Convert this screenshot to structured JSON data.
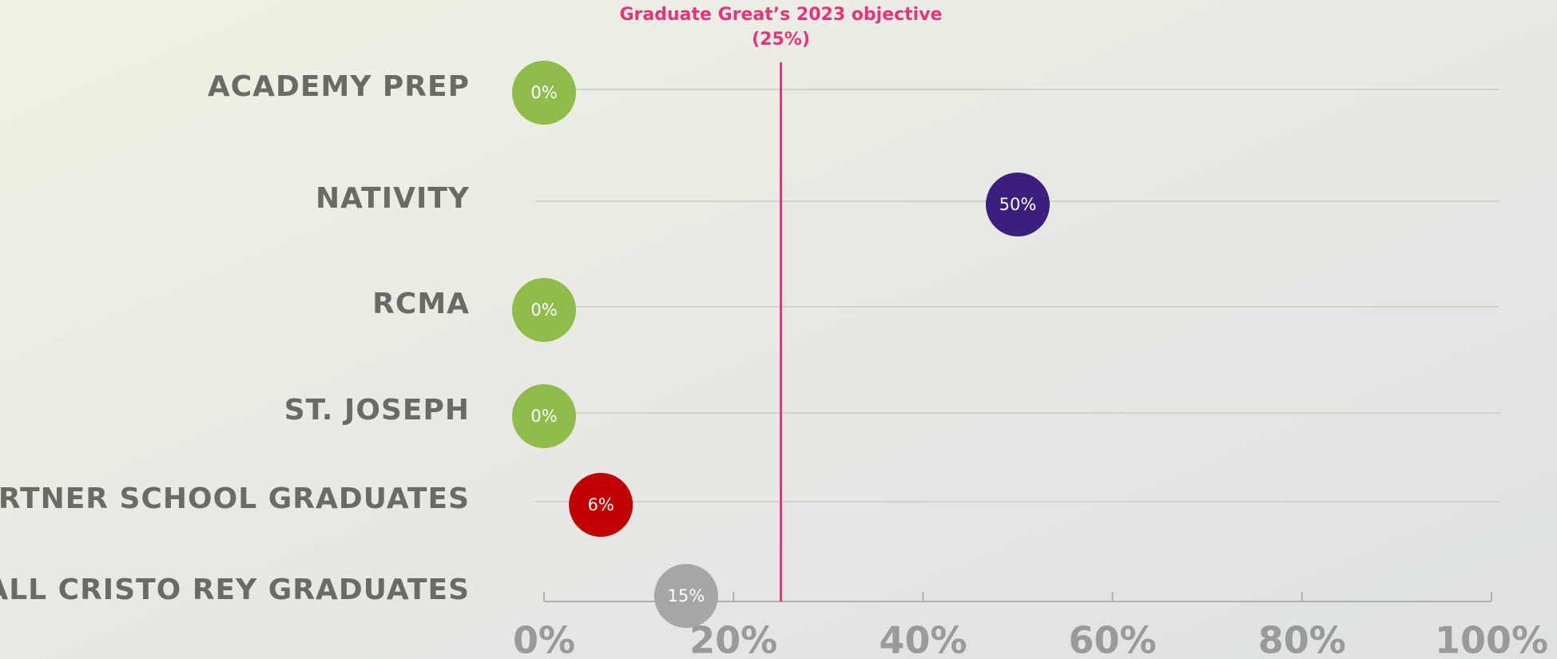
{
  "chart_data": {
    "type": "dot",
    "categories": [
      "ACADEMY PREP",
      "NATIVITY",
      "RCMA",
      "ST. JOSEPH",
      "PARTNER SCHOOL GRADUATES",
      "ALL CRISTO REY GRADUATES"
    ],
    "values": [
      0,
      50,
      0,
      0,
      6,
      15
    ],
    "value_labels": [
      "0%",
      "50%",
      "0%",
      "0%",
      "6%",
      "15%"
    ],
    "colors": [
      "#8fbc4a",
      "#3b1f7d",
      "#8fbc4a",
      "#8fbc4a",
      "#c00000",
      "#a6a6a6"
    ],
    "xlim": [
      0,
      100
    ],
    "xticks": [
      {
        "value": 0,
        "label": "0%"
      },
      {
        "value": 20,
        "label": "20%"
      },
      {
        "value": 40,
        "label": "40%"
      },
      {
        "value": 60,
        "label": "60%"
      },
      {
        "value": 80,
        "label": "80%"
      },
      {
        "value": 100,
        "label": "100%"
      }
    ],
    "annotation": {
      "text": "Graduate Great’s 2023 objective",
      "value": 25,
      "value_label": "(25%)",
      "color": "#e8327c"
    }
  }
}
